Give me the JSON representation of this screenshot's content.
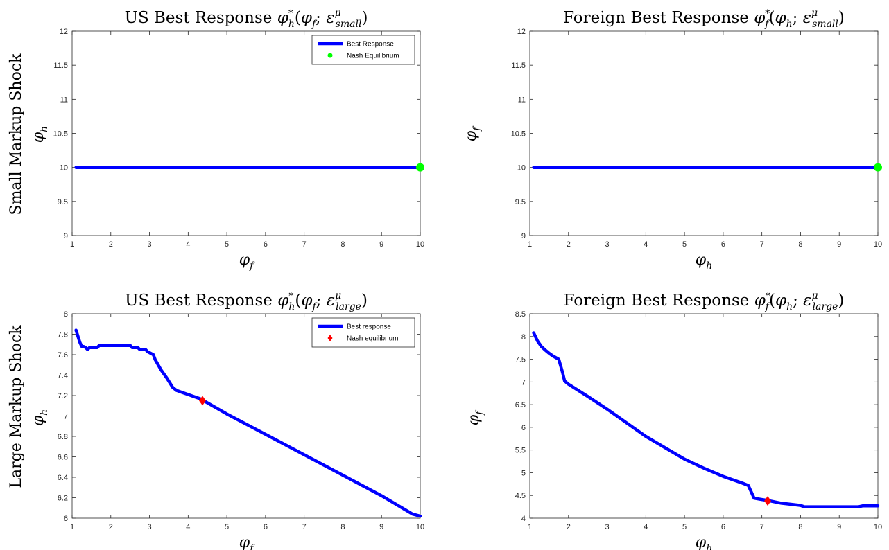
{
  "figure": {
    "row_labels": [
      "Small Markup Shock",
      "Large Markup Shock"
    ]
  },
  "chart_data": [
    {
      "type": "line",
      "title": "US Best Response φ*h(φf; ε^μ_small)",
      "title_parts": {
        "prefix": "US Best Response",
        "var": "φ",
        "var_sub": "h",
        "sup": "*",
        "arg": "φ",
        "arg_sub": "f",
        "eps_sup": "μ",
        "eps_sub": "small"
      },
      "xlabel": {
        "var": "φ",
        "sub": "f"
      },
      "ylabel": {
        "var": "φ",
        "sub": "h"
      },
      "xlim": [
        1,
        10
      ],
      "ylim": [
        9,
        12
      ],
      "xticks": [
        1,
        2,
        3,
        4,
        5,
        6,
        7,
        8,
        9,
        10
      ],
      "yticks": [
        9,
        9.5,
        10,
        10.5,
        11,
        11.5,
        12
      ],
      "ytick_labels": [
        "9",
        "9.5",
        "10",
        "10.5",
        "11",
        "11.5",
        "12"
      ],
      "series": [
        {
          "name": "Best Response",
          "color": "#0000ff",
          "x": [
            1.1,
            10
          ],
          "y": [
            10,
            10
          ]
        }
      ],
      "equilibrium": {
        "name": "Nash Equilibrium",
        "marker": "circle",
        "color": "#00ff00",
        "x": 10,
        "y": 10
      },
      "legend": "top-right",
      "grid": false
    },
    {
      "type": "line",
      "title": "Foreign Best Response φ*f(φh; ε^μ_small)",
      "title_parts": {
        "prefix": "Foreign Best Response",
        "var": "φ",
        "var_sub": "f",
        "sup": "*",
        "arg": "φ",
        "arg_sub": "h",
        "eps_sup": "μ",
        "eps_sub": "small"
      },
      "xlabel": {
        "var": "φ",
        "sub": "h"
      },
      "ylabel": {
        "var": "φ",
        "sub": "f"
      },
      "xlim": [
        1,
        10
      ],
      "ylim": [
        9,
        12
      ],
      "xticks": [
        1,
        2,
        3,
        4,
        5,
        6,
        7,
        8,
        9,
        10
      ],
      "yticks": [
        9,
        9.5,
        10,
        10.5,
        11,
        11.5,
        12
      ],
      "ytick_labels": [
        "9",
        "9.5",
        "10",
        "10.5",
        "11",
        "11.5",
        "12"
      ],
      "series": [
        {
          "color": "#0000ff",
          "x": [
            1.1,
            10
          ],
          "y": [
            10,
            10
          ]
        }
      ],
      "equilibrium": {
        "marker": "circle",
        "color": "#00ff00",
        "x": 10,
        "y": 10
      },
      "legend": "none",
      "grid": false
    },
    {
      "type": "line",
      "title": "US Best Response φ*h(φf; ε^μ_large)",
      "title_parts": {
        "prefix": "US Best Response",
        "var": "φ",
        "var_sub": "h",
        "sup": "*",
        "arg": "φ",
        "arg_sub": "f",
        "eps_sup": "μ",
        "eps_sub": "large"
      },
      "xlabel": {
        "var": "φ",
        "sub": "f"
      },
      "ylabel": {
        "var": "φ",
        "sub": "h"
      },
      "xlim": [
        1,
        10
      ],
      "ylim": [
        6,
        8
      ],
      "xticks": [
        1,
        2,
        3,
        4,
        5,
        6,
        7,
        8,
        9,
        10
      ],
      "yticks": [
        6,
        6.2,
        6.4,
        6.6,
        6.8,
        7,
        7.2,
        7.4,
        7.6,
        7.8,
        8
      ],
      "ytick_labels": [
        "6",
        "6.2",
        "6.4",
        "6.6",
        "6.8",
        "7",
        "7.2",
        "7.4",
        "7.6",
        "7.8",
        "8"
      ],
      "series": [
        {
          "name": "Best response",
          "color": "#0000ff",
          "x": [
            1.1,
            1.15,
            1.2,
            1.25,
            1.3,
            1.35,
            1.4,
            1.45,
            1.5,
            1.55,
            1.65,
            1.7,
            1.75,
            1.8,
            2.0,
            2.2,
            2.4,
            2.5,
            2.55,
            2.7,
            2.75,
            2.9,
            2.95,
            3.1,
            3.15,
            3.3,
            3.45,
            3.6,
            3.7,
            3.85,
            4.0,
            4.15,
            4.3,
            4.4,
            5.0,
            6.0,
            7.0,
            8.0,
            9.0,
            9.8,
            10.0
          ],
          "y": [
            7.84,
            7.78,
            7.72,
            7.68,
            7.68,
            7.67,
            7.65,
            7.67,
            7.67,
            7.67,
            7.67,
            7.69,
            7.69,
            7.69,
            7.69,
            7.69,
            7.69,
            7.69,
            7.67,
            7.67,
            7.65,
            7.65,
            7.63,
            7.6,
            7.55,
            7.45,
            7.37,
            7.28,
            7.25,
            7.23,
            7.21,
            7.19,
            7.17,
            7.15,
            7.02,
            6.82,
            6.62,
            6.42,
            6.22,
            6.04,
            6.02
          ]
        }
      ],
      "equilibrium": {
        "name": "Nash equilibrium",
        "marker": "diamond",
        "color": "#ff0000",
        "x": 4.37,
        "y": 7.15
      },
      "legend": "top-right",
      "grid": false
    },
    {
      "type": "line",
      "title": "Foreign Best Response φ*f(φh; ε^μ_large)",
      "title_parts": {
        "prefix": "Foreign Best Response",
        "var": "φ",
        "var_sub": "f",
        "sup": "*",
        "arg": "φ",
        "arg_sub": "h",
        "eps_sup": "μ",
        "eps_sub": "large"
      },
      "xlabel": {
        "var": "φ",
        "sub": "h"
      },
      "ylabel": {
        "var": "φ",
        "sub": "f"
      },
      "xlim": [
        1,
        10
      ],
      "ylim": [
        4,
        8.5
      ],
      "xticks": [
        1,
        2,
        3,
        4,
        5,
        6,
        7,
        8,
        9,
        10
      ],
      "yticks": [
        4,
        4.5,
        5,
        5.5,
        6,
        6.5,
        7,
        7.5,
        8,
        8.5
      ],
      "ytick_labels": [
        "4",
        "4.5",
        "5",
        "5.5",
        "6",
        "6.5",
        "7",
        "7.5",
        "8",
        "8.5"
      ],
      "series": [
        {
          "color": "#0000ff",
          "x": [
            1.1,
            1.2,
            1.3,
            1.4,
            1.5,
            1.6,
            1.75,
            1.85,
            1.9,
            2.0,
            2.5,
            3.0,
            3.5,
            4.0,
            4.5,
            5.0,
            5.5,
            6.0,
            6.5,
            6.65,
            6.8,
            7.0,
            7.15,
            7.5,
            8.0,
            8.1,
            9.0,
            9.5,
            9.6,
            10.0
          ],
          "y": [
            8.08,
            7.9,
            7.78,
            7.7,
            7.63,
            7.57,
            7.5,
            7.2,
            7.02,
            6.95,
            6.68,
            6.4,
            6.1,
            5.8,
            5.55,
            5.3,
            5.1,
            4.92,
            4.77,
            4.72,
            4.44,
            4.41,
            4.39,
            4.33,
            4.28,
            4.25,
            4.25,
            4.25,
            4.27,
            4.27
          ]
        }
      ],
      "equilibrium": {
        "marker": "diamond",
        "color": "#ff0000",
        "x": 7.15,
        "y": 4.38
      },
      "legend": "none",
      "grid": false
    }
  ]
}
